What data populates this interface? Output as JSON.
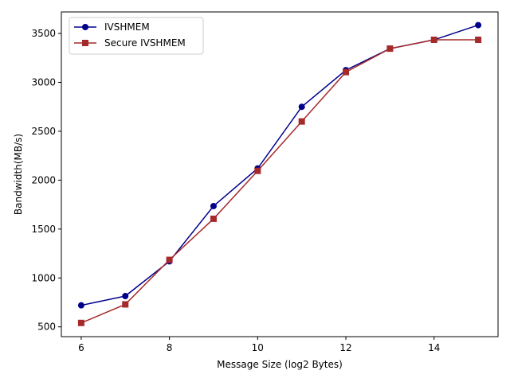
{
  "chart_data": {
    "type": "line",
    "xlabel": "Message Size (log2 Bytes)",
    "ylabel": "Bandwidth(MB/s)",
    "xlim": [
      5.55,
      15.45
    ],
    "ylim": [
      400,
      3720
    ],
    "xticks": [
      6,
      8,
      10,
      12,
      14
    ],
    "yticks": [
      500,
      1000,
      1500,
      2000,
      2500,
      3000,
      3500
    ],
    "grid": false,
    "legend_position": "top-left",
    "x": [
      6,
      7,
      8,
      9,
      10,
      11,
      12,
      13,
      14,
      15
    ],
    "series": [
      {
        "name": "IVSHMEM",
        "color": "#00008b",
        "marker": "circle",
        "values": [
          720,
          815,
          1170,
          1735,
          2120,
          2750,
          3125,
          3345,
          3435,
          3585
        ]
      },
      {
        "name": "Secure IVSHMEM",
        "color": "#a52a2a",
        "marker": "square",
        "values": [
          540,
          730,
          1185,
          1605,
          2095,
          2600,
          3105,
          3345,
          3435,
          3435
        ]
      }
    ]
  }
}
